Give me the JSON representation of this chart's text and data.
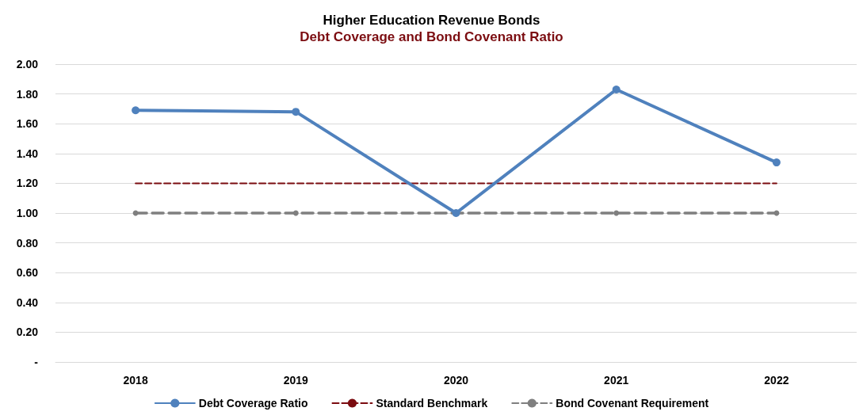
{
  "chart_data": {
    "type": "line",
    "title": "Higher Education Revenue Bonds",
    "subtitle": "Debt Coverage and Bond Covenant Ratio",
    "categories": [
      "2018",
      "2019",
      "2020",
      "2021",
      "2022"
    ],
    "series": [
      {
        "name": "Debt Coverage Ratio",
        "color": "#4f81bd",
        "values": [
          1.69,
          1.68,
          1.0,
          1.83,
          1.34
        ],
        "marker": "circle",
        "line_style": "solid"
      },
      {
        "name": "Standard Benchmark",
        "color": "#7b0c10",
        "values": [
          1.2,
          1.2,
          1.2,
          1.2,
          1.2
        ],
        "marker": "none",
        "line_style": "dashed"
      },
      {
        "name": "Bond Covenant Requirement",
        "color": "#7f7f7f",
        "values": [
          1.0,
          1.0,
          1.0,
          1.0,
          1.0
        ],
        "marker": "circle",
        "line_style": "dashed"
      }
    ],
    "ylim": [
      0,
      2
    ],
    "yticks": [
      {
        "value": 0,
        "label": "-"
      },
      {
        "value": 0.2,
        "label": "0.20"
      },
      {
        "value": 0.4,
        "label": "0.40"
      },
      {
        "value": 0.6,
        "label": "0.60"
      },
      {
        "value": 0.8,
        "label": "0.80"
      },
      {
        "value": 1,
        "label": "1.00"
      },
      {
        "value": 1.2,
        "label": "1.20"
      },
      {
        "value": 1.4,
        "label": "1.40"
      },
      {
        "value": 1.6,
        "label": "1.60"
      },
      {
        "value": 1.8,
        "label": "1.80"
      },
      {
        "value": 2,
        "label": "2.00"
      }
    ],
    "grid": "y",
    "legend": "bottom"
  }
}
